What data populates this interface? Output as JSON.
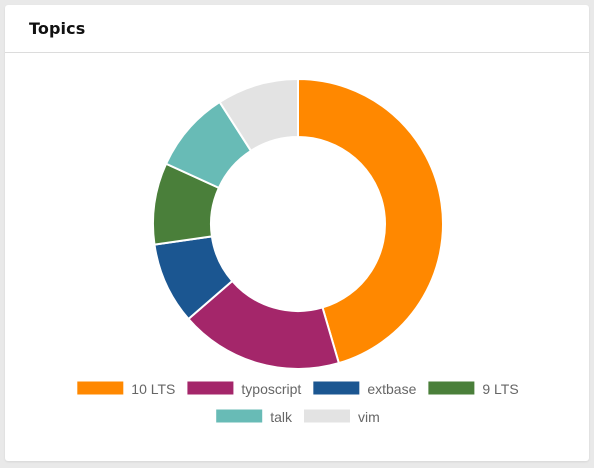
{
  "card": {
    "title": "Topics"
  },
  "colors": {
    "background": "#e9e9e9",
    "card": "#ffffff",
    "legend_text": "#666666"
  },
  "chart_data": {
    "type": "pie",
    "variant": "donut",
    "legend_position": "bottom",
    "categories": [
      "10 LTS",
      "typoscript",
      "extbase",
      "9 LTS",
      "talk",
      "vim"
    ],
    "values": [
      45,
      18,
      9,
      9,
      9,
      9
    ],
    "colors": [
      "#ff8800",
      "#a4266a",
      "#1b5691",
      "#4a7f3a",
      "#68bbb6",
      "#e3e3e3"
    ]
  }
}
